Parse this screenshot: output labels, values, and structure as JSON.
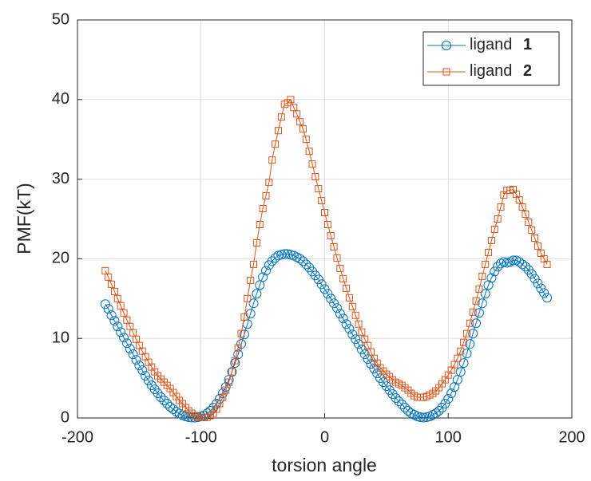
{
  "chart_data": {
    "type": "line",
    "xlabel": "torsion angle",
    "ylabel": "PMF(kT)",
    "xlim": [
      -200,
      200
    ],
    "ylim": [
      0,
      50
    ],
    "xticks": [
      -200,
      -100,
      0,
      100,
      200
    ],
    "yticks": [
      0,
      10,
      20,
      30,
      40,
      50
    ],
    "grid": true,
    "legend": "upper right",
    "x": [
      -177.5,
      -175,
      -172.5,
      -170,
      -167.5,
      -165,
      -162.5,
      -160,
      -157.5,
      -155,
      -152.5,
      -150,
      -147.5,
      -145,
      -142.5,
      -140,
      -137.5,
      -135,
      -132.5,
      -130,
      -127.5,
      -125,
      -122.5,
      -120,
      -117.5,
      -115,
      -112.5,
      -110,
      -107.5,
      -105,
      -102.5,
      -100,
      -97.5,
      -95,
      -92.5,
      -90,
      -87.5,
      -85,
      -82.5,
      -80,
      -77.5,
      -75,
      -72.5,
      -70,
      -67.5,
      -65,
      -62.5,
      -60,
      -57.5,
      -55,
      -52.5,
      -50,
      -47.5,
      -45,
      -42.5,
      -40,
      -37.5,
      -35,
      -32.5,
      -30,
      -27.5,
      -25,
      -22.5,
      -20,
      -17.5,
      -15,
      -12.5,
      -10,
      -7.5,
      -5,
      -2.5,
      0,
      2.5,
      5,
      7.5,
      10,
      12.5,
      15,
      17.5,
      20,
      22.5,
      25,
      27.5,
      30,
      32.5,
      35,
      37.5,
      40,
      42.5,
      45,
      47.5,
      50,
      52.5,
      55,
      57.5,
      60,
      62.5,
      65,
      67.5,
      70,
      72.5,
      75,
      77.5,
      80,
      82.5,
      85,
      87.5,
      90,
      92.5,
      95,
      97.5,
      100,
      102.5,
      105,
      107.5,
      110,
      112.5,
      115,
      117.5,
      120,
      122.5,
      125,
      127.5,
      130,
      132.5,
      135,
      137.5,
      140,
      142.5,
      145,
      147.5,
      150,
      152.5,
      155,
      157.5,
      160,
      162.5,
      165,
      167.5,
      170,
      172.5,
      175,
      177.5,
      180
    ],
    "series": [
      {
        "name": "ligand 1",
        "color": "#0072bd",
        "marker": "circle",
        "values": [
          14.3,
          13.7,
          12.9,
          12.2,
          11.5,
          10.8,
          10.1,
          9.4,
          8.7,
          8.0,
          7.3,
          6.6,
          6.0,
          5.3,
          4.7,
          4.1,
          3.6,
          3.1,
          2.6,
          2.2,
          1.8,
          1.4,
          1.1,
          0.8,
          0.55,
          0.35,
          0.2,
          0.1,
          0.05,
          0.05,
          0.1,
          0.2,
          0.35,
          0.6,
          0.9,
          1.3,
          1.8,
          2.4,
          3.1,
          3.9,
          4.8,
          5.8,
          6.9,
          8.0,
          9.3,
          10.5,
          11.8,
          13.1,
          14.4,
          15.6,
          16.7,
          17.7,
          18.5,
          19.2,
          19.7,
          20.1,
          20.4,
          20.5,
          20.6,
          20.6,
          20.5,
          20.4,
          20.2,
          20.0,
          19.7,
          19.3,
          18.9,
          18.4,
          17.9,
          17.4,
          16.8,
          16.2,
          15.6,
          15.0,
          14.4,
          13.8,
          13.1,
          12.5,
          11.8,
          11.2,
          10.5,
          9.9,
          9.3,
          8.6,
          8.0,
          7.4,
          6.8,
          6.2,
          5.6,
          5.0,
          4.5,
          4.0,
          3.5,
          3.0,
          2.5,
          2.1,
          1.7,
          1.3,
          0.9,
          0.6,
          0.4,
          0.2,
          0.1,
          0.05,
          0.1,
          0.2,
          0.4,
          0.6,
          0.9,
          1.3,
          1.8,
          2.4,
          3.1,
          3.9,
          4.8,
          5.8,
          6.9,
          8.1,
          9.3,
          10.6,
          11.9,
          13.2,
          14.4,
          15.6,
          16.7,
          17.6,
          18.4,
          19.0,
          19.4,
          19.6,
          19.5,
          19.6,
          19.8,
          19.8,
          19.6,
          19.3,
          19.0,
          18.6,
          18.1,
          17.5,
          16.9,
          16.3,
          15.7,
          15.1
        ]
      },
      {
        "name": "ligand 2",
        "color": "#d95319",
        "marker": "square",
        "values": [
          18.5,
          17.7,
          16.8,
          15.9,
          15.0,
          14.1,
          13.2,
          12.3,
          11.5,
          10.7,
          9.9,
          9.1,
          8.4,
          7.7,
          7.0,
          6.4,
          5.8,
          5.3,
          4.9,
          4.5,
          4.1,
          3.7,
          3.2,
          2.7,
          2.2,
          1.8,
          1.3,
          0.9,
          0.6,
          0.3,
          0.15,
          0.05,
          0.05,
          0.1,
          0.3,
          0.6,
          1.1,
          1.8,
          2.6,
          3.5,
          4.5,
          5.8,
          7.2,
          8.8,
          10.6,
          12.7,
          15.0,
          17.3,
          19.3,
          22.0,
          24.3,
          26.3,
          27.9,
          29.6,
          32.4,
          34.4,
          36.1,
          37.8,
          39.4,
          39.6,
          40.0,
          39.0,
          38.2,
          37.2,
          36.3,
          35.0,
          33.5,
          31.9,
          30.3,
          28.8,
          27.3,
          25.8,
          24.3,
          22.9,
          21.5,
          20.1,
          18.8,
          17.5,
          16.3,
          15.1,
          14.0,
          12.9,
          11.8,
          10.8,
          9.9,
          9.1,
          8.3,
          7.5,
          6.9,
          6.3,
          5.9,
          5.5,
          5.2,
          4.8,
          4.5,
          4.3,
          4.1,
          3.8,
          3.5,
          3.1,
          2.8,
          2.6,
          2.6,
          2.6,
          2.7,
          2.9,
          3.1,
          3.4,
          3.8,
          4.3,
          4.8,
          5.4,
          6.0,
          6.7,
          7.5,
          8.4,
          9.5,
          10.6,
          11.9,
          13.3,
          14.7,
          16.2,
          17.8,
          19.3,
          20.8,
          22.3,
          23.7,
          25.0,
          26.5,
          28.0,
          28.6,
          28.6,
          28.7,
          28.1,
          27.4,
          26.5,
          25.6,
          24.6,
          23.6,
          22.6,
          21.6,
          20.7,
          20.0,
          19.3
        ]
      }
    ]
  }
}
